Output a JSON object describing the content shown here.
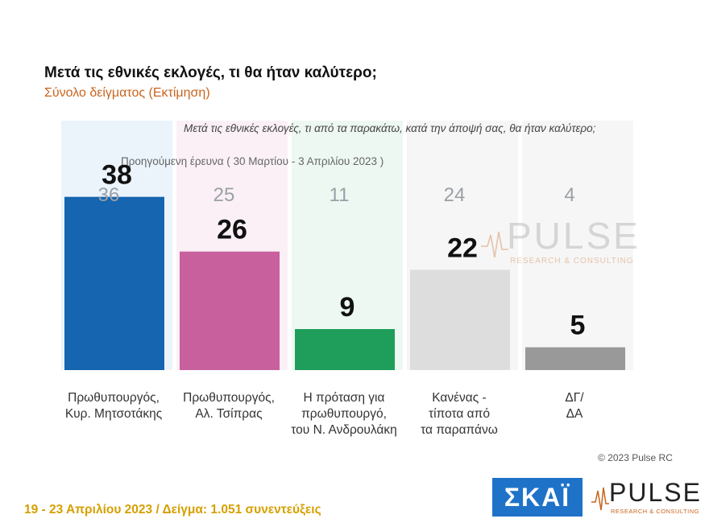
{
  "header": {
    "title": "Μετά τις εθνικές εκλογές, τι θα ήταν καλύτερο;",
    "subtitle": "Σύνολο δείγματος  (Εκτίμηση)"
  },
  "question": "Μετά τις εθνικές εκλογές, τι από τα παρακάτω, κατά την άποψή σας, θα ήταν καλύτερο;",
  "previous_survey_label": "Προηγούμενη έρευνα  ( 30 Μαρτίου - 3 Απριλίου  2023 )",
  "chart_data": {
    "type": "bar",
    "categories": [
      [
        "Πρωθυπουργός,",
        "Κυρ. Μητσοτάκης"
      ],
      [
        "Πρωθυπουργός,",
        "Αλ. Τσίπρας"
      ],
      [
        "Η πρόταση για",
        "πρωθυπουργό,",
        "του Ν. Ανδρουλάκη"
      ],
      [
        "Κανένας -",
        "τίποτα από",
        "τα παραπάνω"
      ],
      [
        "ΔΓ/",
        "ΔΑ"
      ]
    ],
    "series": [
      {
        "name": "Προηγούμενη έρευνα",
        "values": [
          36,
          25,
          11,
          24,
          4
        ]
      },
      {
        "values": [
          38,
          26,
          9,
          22,
          5
        ]
      }
    ],
    "colors": [
      "#1565b0",
      "#c8609e",
      "#1e9e5a",
      "#dddddd",
      "#999999"
    ],
    "bg_colors": [
      "#e3f0fa",
      "#f8e9f2",
      "#e6f5ec",
      "#f2f2f2",
      "#f2f2f2"
    ],
    "ylim": [
      0,
      60
    ]
  },
  "copyright": "© 2023 Pulse RC",
  "footer": "19 - 23  Απριλίου  2023  /  Δείγμα:  1.051 συνεντεύξεις",
  "logos": {
    "skai": "ΣΚΑΪ",
    "pulse": "PULSE",
    "pulse_sub": "RESEARCH & CONSULTING"
  }
}
